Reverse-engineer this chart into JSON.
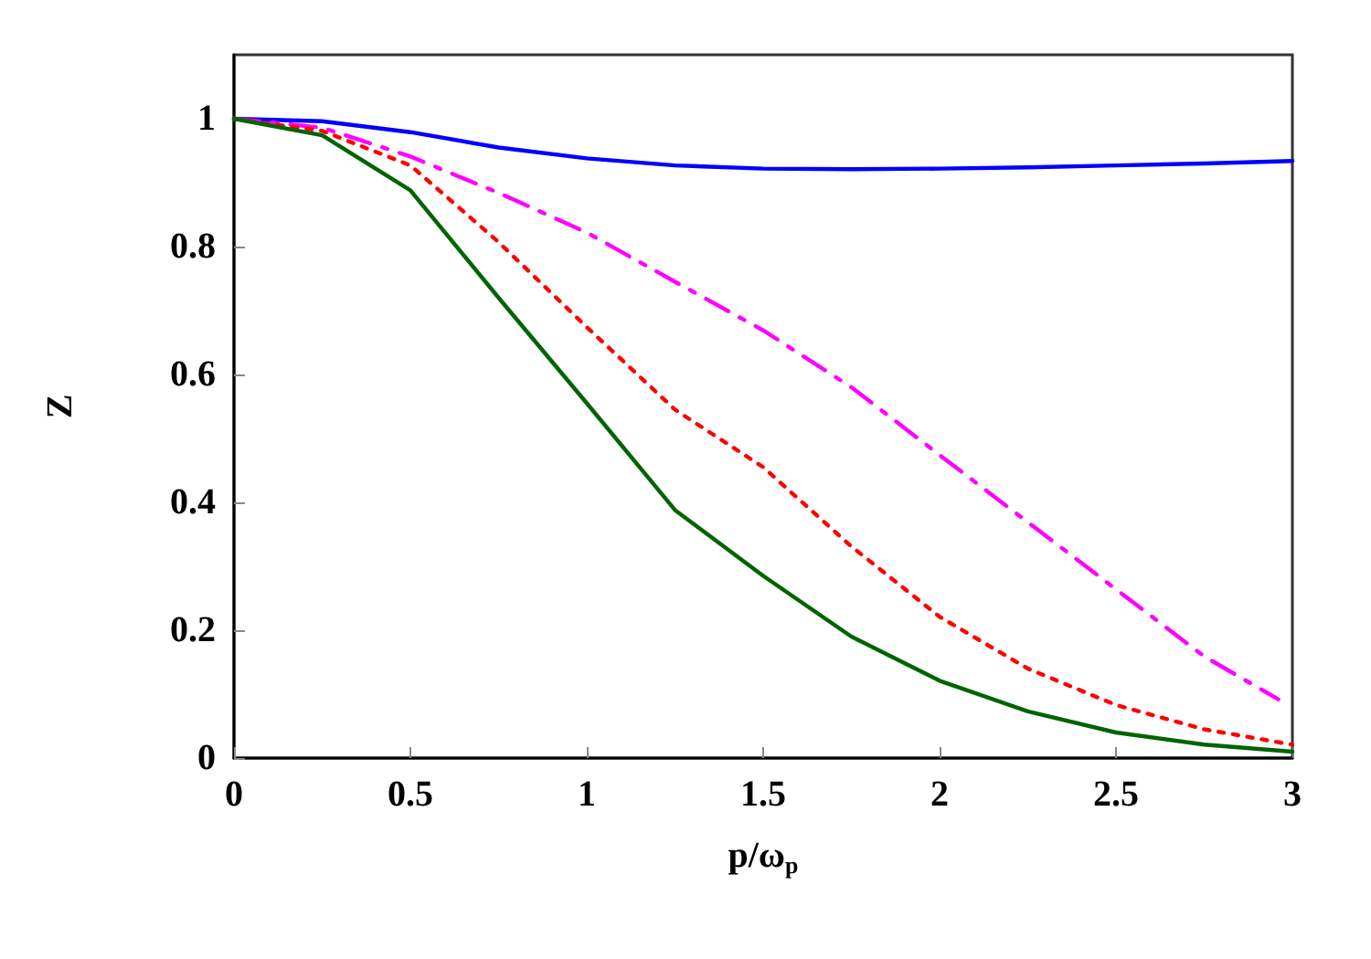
{
  "chart_data": {
    "type": "line",
    "xlabel": "p/ω$_{p}$",
    "ylabel": "Z",
    "xlim": [
      0,
      3
    ],
    "ylim": [
      0,
      1.1
    ],
    "xticks": [
      0,
      0.5,
      1,
      1.5,
      2,
      2.5,
      3
    ],
    "yticks": [
      0,
      0.2,
      0.4,
      0.6,
      0.8,
      1
    ],
    "grid": false,
    "marker": "none",
    "series": [
      {
        "color": "#0000ff",
        "line_style": "solid",
        "x": [
          0,
          0.25,
          0.5,
          0.75,
          1,
          1.25,
          1.5,
          1.75,
          2,
          2.25,
          2.5,
          2.75,
          3
        ],
        "values": [
          1,
          0.996,
          0.979,
          0.955,
          0.938,
          0.927,
          0.922,
          0.921,
          0.922,
          0.924,
          0.927,
          0.93,
          0.934
        ]
      },
      {
        "color": "#ff00ff",
        "line_style": "dashdot",
        "x": [
          0,
          0.25,
          0.5,
          0.75,
          1,
          1.25,
          1.5,
          1.75,
          2,
          2.25,
          2.5,
          2.75,
          2.96
        ],
        "values": [
          1,
          0.986,
          0.941,
          0.884,
          0.822,
          0.745,
          0.669,
          0.58,
          0.474,
          0.369,
          0.264,
          0.159,
          0.092
        ]
      },
      {
        "color": "#ff0000",
        "line_style": "dotted",
        "x": [
          0,
          0.25,
          0.5,
          0.75,
          1,
          1.25,
          1.5,
          1.75,
          2,
          2.25,
          2.5,
          2.75,
          3
        ],
        "values": [
          1,
          0.981,
          0.927,
          0.807,
          0.674,
          0.545,
          0.455,
          0.331,
          0.221,
          0.14,
          0.083,
          0.045,
          0.021
        ]
      },
      {
        "color": "#006400",
        "line_style": "solid",
        "x": [
          0,
          0.25,
          0.5,
          0.75,
          1,
          1.25,
          1.5,
          1.75,
          2,
          2.25,
          2.5,
          2.75,
          3
        ],
        "values": [
          1,
          0.974,
          0.888,
          0.72,
          0.555,
          0.388,
          0.285,
          0.19,
          0.121,
          0.073,
          0.04,
          0.021,
          0.01
        ]
      }
    ]
  }
}
